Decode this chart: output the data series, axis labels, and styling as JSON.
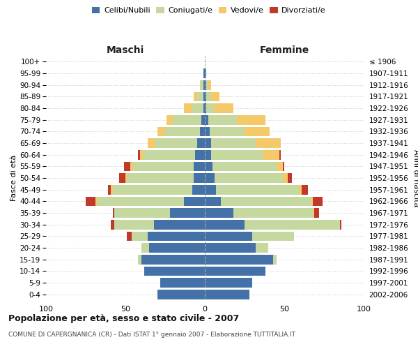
{
  "age_groups": [
    "0-4",
    "5-9",
    "10-14",
    "15-19",
    "20-24",
    "25-29",
    "30-34",
    "35-39",
    "40-44",
    "45-49",
    "50-54",
    "55-59",
    "60-64",
    "65-69",
    "70-74",
    "75-79",
    "80-84",
    "85-89",
    "90-94",
    "95-99",
    "100+"
  ],
  "birth_years": [
    "2002-2006",
    "1997-2001",
    "1992-1996",
    "1987-1991",
    "1982-1986",
    "1977-1981",
    "1972-1976",
    "1967-1971",
    "1962-1966",
    "1957-1961",
    "1952-1956",
    "1947-1951",
    "1942-1946",
    "1937-1941",
    "1932-1936",
    "1927-1931",
    "1922-1926",
    "1917-1921",
    "1912-1916",
    "1907-1911",
    "≤ 1906"
  ],
  "males": {
    "celibi": [
      30,
      28,
      38,
      40,
      35,
      36,
      32,
      22,
      13,
      8,
      7,
      7,
      6,
      5,
      3,
      2,
      1,
      1,
      1,
      1,
      0
    ],
    "coniugati": [
      0,
      0,
      0,
      2,
      5,
      10,
      25,
      35,
      55,
      50,
      42,
      38,
      33,
      26,
      22,
      18,
      7,
      4,
      2,
      0,
      0
    ],
    "vedovi": [
      0,
      0,
      0,
      0,
      0,
      0,
      0,
      0,
      1,
      1,
      1,
      2,
      2,
      5,
      5,
      4,
      5,
      2,
      0,
      0,
      0
    ],
    "divorziati": [
      0,
      0,
      0,
      0,
      0,
      3,
      2,
      1,
      6,
      2,
      4,
      4,
      1,
      0,
      0,
      0,
      0,
      0,
      0,
      0,
      0
    ]
  },
  "females": {
    "nubili": [
      28,
      30,
      38,
      43,
      32,
      30,
      25,
      18,
      10,
      7,
      6,
      5,
      4,
      4,
      3,
      2,
      1,
      1,
      1,
      1,
      0
    ],
    "coniugate": [
      0,
      0,
      0,
      2,
      8,
      26,
      60,
      50,
      57,
      52,
      43,
      40,
      33,
      28,
      22,
      18,
      5,
      3,
      1,
      0,
      0
    ],
    "vedove": [
      0,
      0,
      0,
      0,
      0,
      0,
      0,
      1,
      1,
      2,
      3,
      4,
      10,
      16,
      16,
      18,
      12,
      5,
      2,
      0,
      0
    ],
    "divorziate": [
      0,
      0,
      0,
      0,
      0,
      0,
      1,
      3,
      6,
      4,
      3,
      1,
      1,
      0,
      0,
      0,
      0,
      0,
      0,
      0,
      0
    ]
  },
  "colors": {
    "celibi_nubili": "#4472a8",
    "coniugati": "#c5d8a0",
    "vedovi": "#f5c96a",
    "divorziati": "#c0392b"
  },
  "xlim": 100,
  "title": "Popolazione per età, sesso e stato civile - 2007",
  "subtitle": "COMUNE DI CAPERGNANICA (CR) - Dati ISTAT 1° gennaio 2007 - Elaborazione TUTTITALIA.IT",
  "ylabel_left": "Fasce di età",
  "ylabel_right": "Anni di nascita",
  "xlabel_left": "Maschi",
  "xlabel_right": "Femmine",
  "background_color": "#ffffff",
  "grid_color": "#cccccc"
}
